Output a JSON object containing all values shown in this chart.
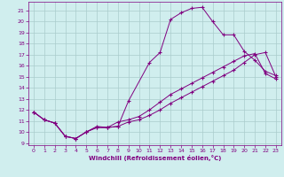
{
  "xlabel": "Windchill (Refroidissement éolien,°C)",
  "xlim": [
    -0.5,
    23.5
  ],
  "ylim": [
    8.8,
    21.8
  ],
  "yticks": [
    9,
    10,
    11,
    12,
    13,
    14,
    15,
    16,
    17,
    18,
    19,
    20,
    21
  ],
  "xticks": [
    0,
    1,
    2,
    3,
    4,
    5,
    6,
    7,
    8,
    9,
    10,
    11,
    12,
    13,
    14,
    15,
    16,
    17,
    18,
    19,
    20,
    21,
    22,
    23
  ],
  "line_color": "#800080",
  "bg_color": "#d0eeee",
  "grid_color": "#aacccc",
  "curve1_x": [
    0,
    1,
    2,
    3,
    4,
    5,
    6,
    7,
    8,
    9,
    11,
    12,
    13,
    14,
    15,
    16,
    17,
    18,
    19,
    20,
    21,
    22,
    23
  ],
  "curve1_y": [
    11.8,
    11.1,
    10.8,
    9.6,
    9.4,
    10.0,
    10.5,
    10.4,
    10.5,
    12.8,
    16.3,
    17.2,
    20.2,
    20.8,
    21.2,
    21.3,
    20.0,
    18.8,
    18.8,
    17.3,
    16.5,
    15.5,
    15.1
  ],
  "curve2_x": [
    0,
    1,
    2,
    3,
    4,
    5,
    6,
    7,
    8,
    9,
    10,
    11,
    12,
    13,
    14,
    15,
    16,
    17,
    18,
    19,
    20,
    21,
    22,
    23
  ],
  "curve2_y": [
    11.8,
    11.1,
    10.8,
    9.6,
    9.4,
    10.0,
    10.4,
    10.4,
    10.5,
    10.9,
    11.1,
    11.5,
    12.0,
    12.6,
    13.1,
    13.6,
    14.1,
    14.6,
    15.1,
    15.6,
    16.3,
    17.0,
    17.2,
    15.0
  ],
  "curve3_x": [
    0,
    1,
    2,
    3,
    4,
    5,
    6,
    7,
    8,
    9,
    10,
    11,
    12,
    13,
    14,
    15,
    16,
    17,
    18,
    19,
    20,
    21,
    22,
    23
  ],
  "curve3_y": [
    11.8,
    11.1,
    10.8,
    9.6,
    9.4,
    10.0,
    10.4,
    10.4,
    10.9,
    11.1,
    11.4,
    12.0,
    12.7,
    13.4,
    13.9,
    14.4,
    14.9,
    15.4,
    15.9,
    16.4,
    16.9,
    17.1,
    15.3,
    14.8
  ]
}
